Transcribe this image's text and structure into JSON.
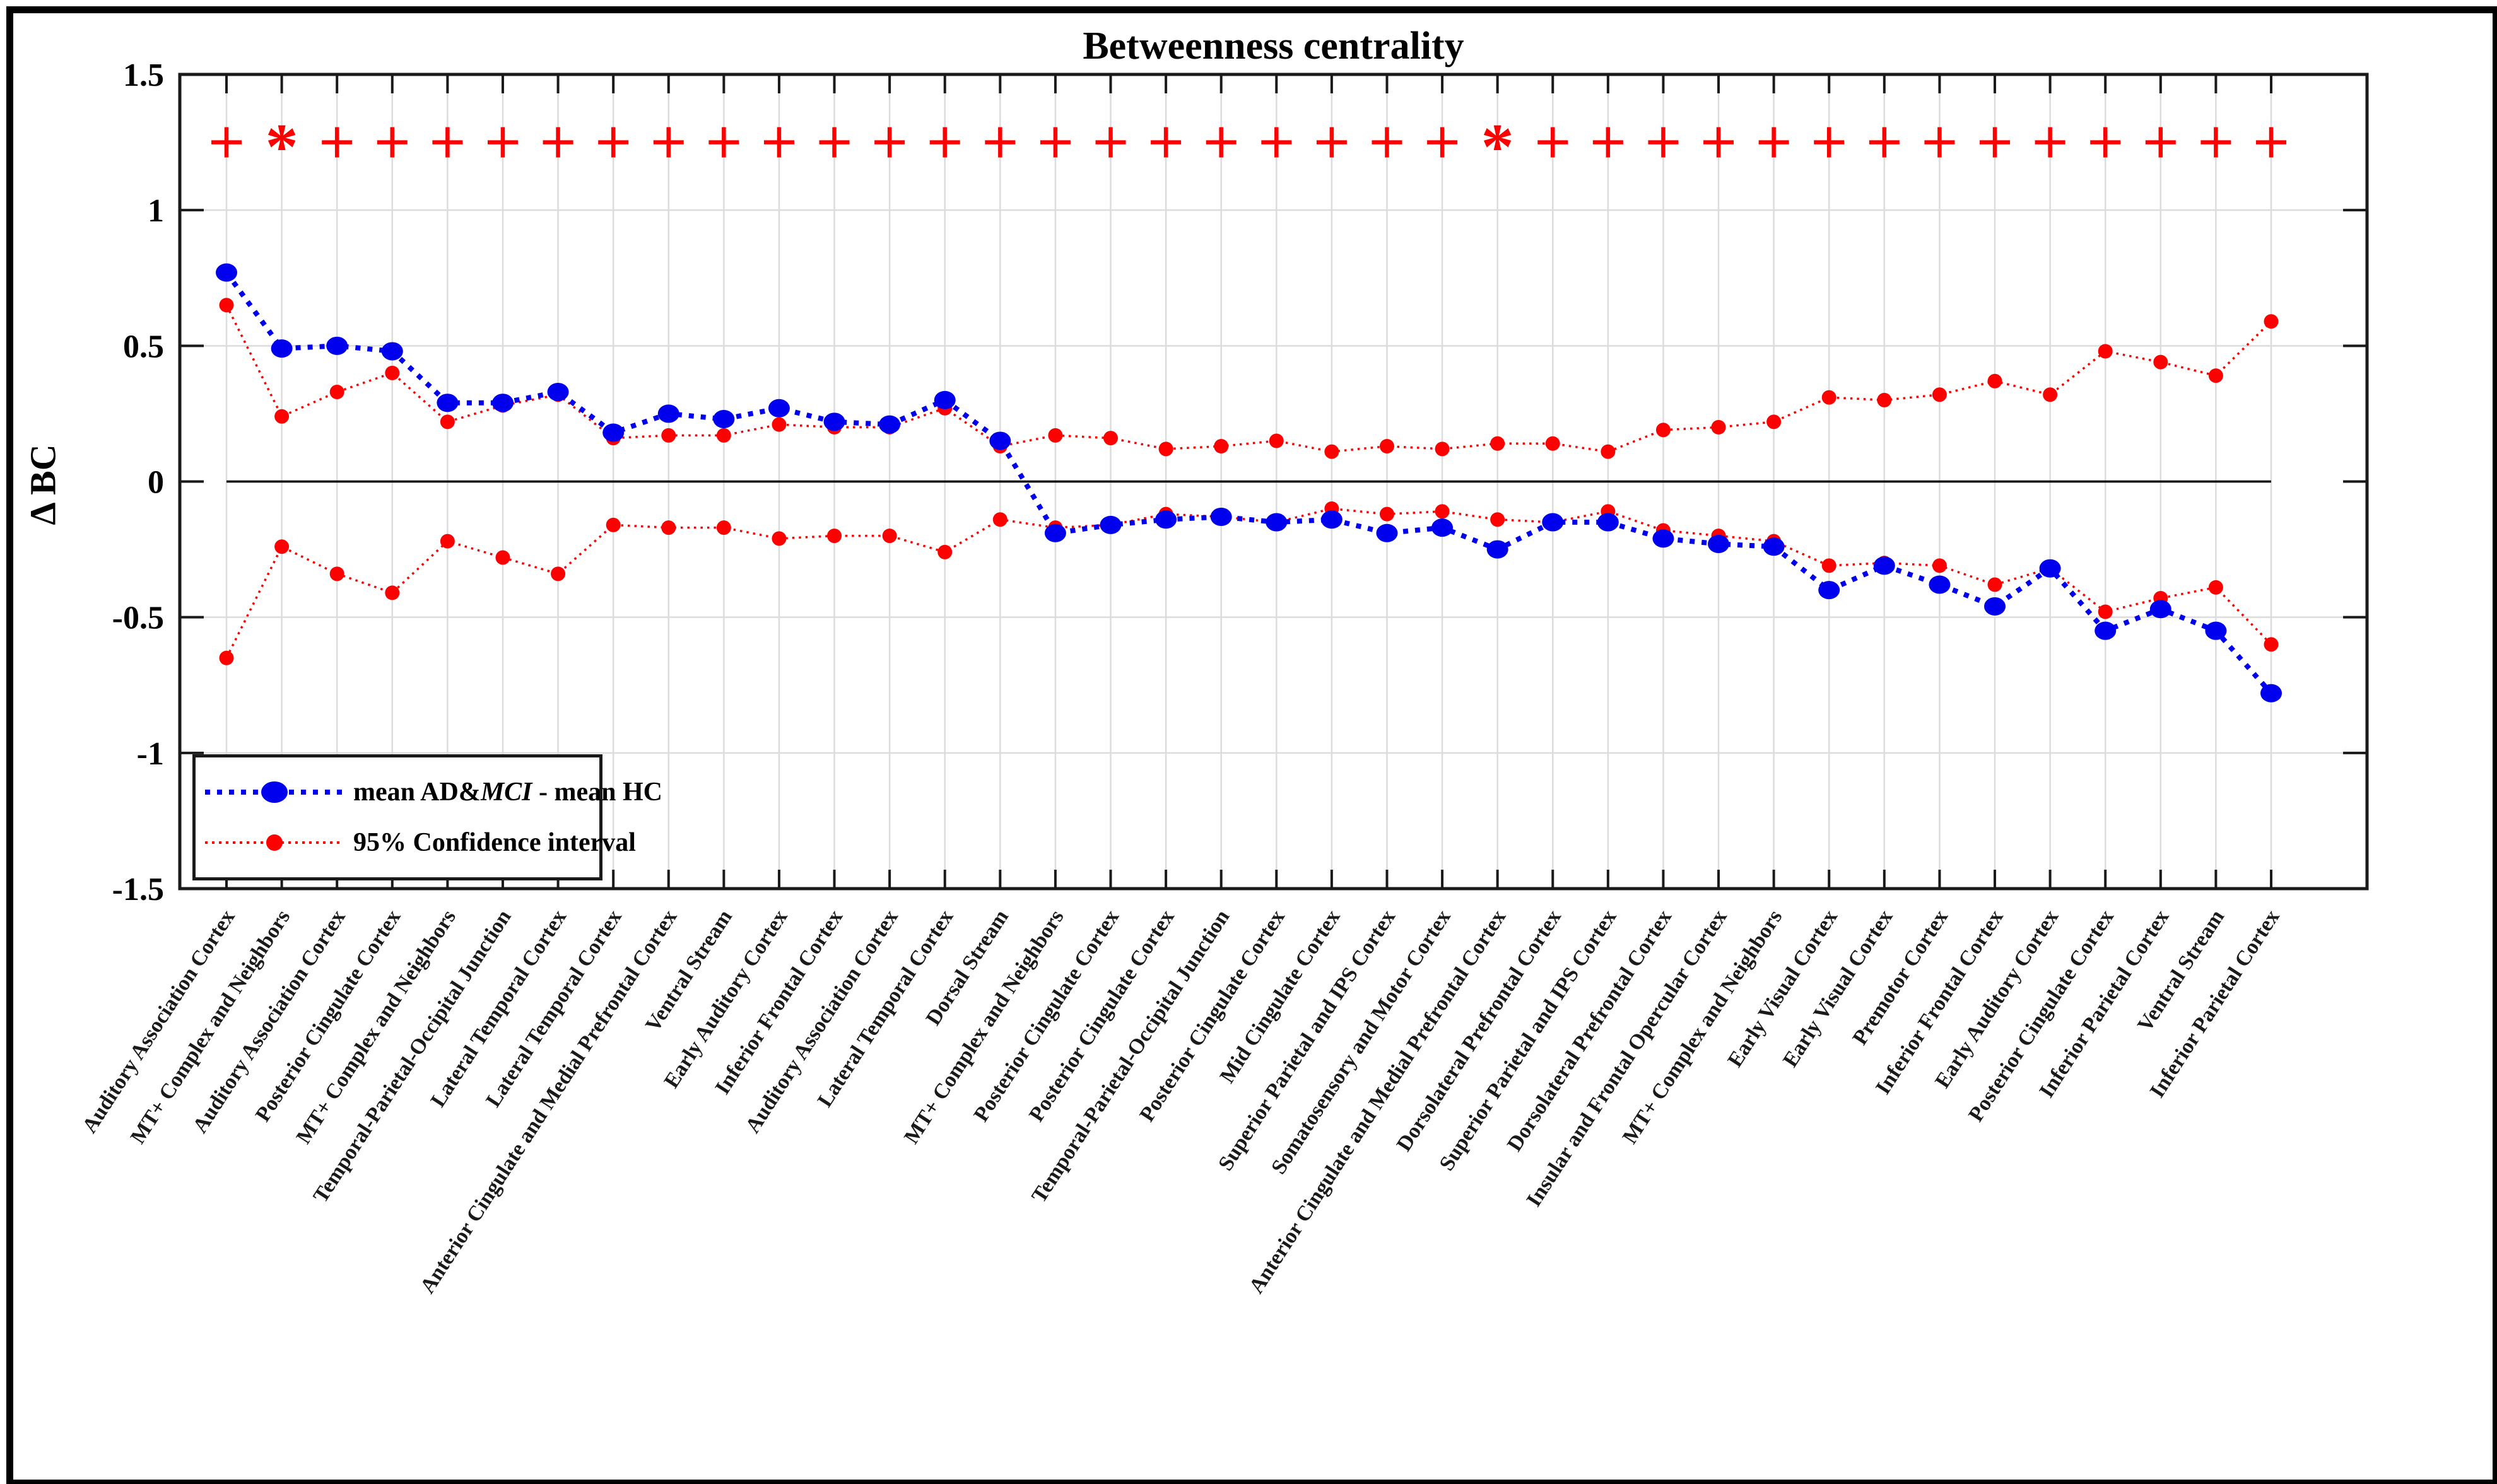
{
  "figure": {
    "title": "Betweenness centrality",
    "ylabel": "Δ BC",
    "background_color": "#ffffff",
    "border_color": "#000000"
  },
  "legend": {
    "series1_prefix": "mean AD&",
    "series1_italic": "MCI",
    "series1_suffix": " - mean HC",
    "series2_label": "95% Confidence interval"
  },
  "chart_data": {
    "type": "line",
    "title": "Betweenness centrality",
    "xlabel": "",
    "ylabel": "Δ BC",
    "ylim": [
      -1.5,
      1.5
    ],
    "ytick_values": [
      1.5,
      1,
      0.5,
      0,
      -0.5,
      -1,
      -1.5
    ],
    "ytick_labels": [
      "1.5",
      "1",
      "0.5",
      "0",
      "-0.5",
      "-1",
      "-1.5"
    ],
    "grid": true,
    "legend_position": "lower-left",
    "zero_line": 0,
    "significance_row_y": 1.25,
    "significance_markers": [
      "+",
      "*",
      "+",
      "+",
      "+",
      "+",
      "+",
      "+",
      "+",
      "+",
      "+",
      "+",
      "+",
      "+",
      "+",
      "+",
      "+",
      "+",
      "+",
      "+",
      "+",
      "+",
      "+",
      "*",
      "+",
      "+",
      "+",
      "+",
      "+",
      "+",
      "+",
      "+",
      "+",
      "+",
      "+",
      "+",
      "+",
      "+"
    ],
    "categories": [
      "Auditory Association Cortex",
      "MT+ Complex and Neighbors",
      "Auditory Association Cortex",
      "Posterior Cingulate Cortex",
      "MT+ Complex and Neighbors",
      "Temporal-Parietal-Occipital Junction",
      "Lateral Temporal Cortex",
      "Lateral Temporal Cortex",
      "Anterior Cingulate and Medial Prefrontal Cortex",
      "Ventral Stream",
      "Early Auditory Cortex",
      "Inferior Frontal Cortex",
      "Auditory Association Cortex",
      "Lateral Temporal Cortex",
      "Dorsal Stream",
      "MT+ Complex and Neighbors",
      "Posterior Cingulate Cortex",
      "Posterior Cingulate Cortex",
      "Temporal-Parietal-Occipital Junction",
      "Posterior Cingulate Cortex",
      "Mid Cingulate Cortex",
      "Superior Parietal and IPS Cortex",
      "Somatosensory and Motor Cortex",
      "Anterior Cingulate and Medial Prefrontal Cortex",
      "Dorsolateral Prefrontal Cortex",
      "Superior Parietal and IPS Cortex",
      "Dorsolateral Prefrontal Cortex",
      "Insular and Frontal Opercular Cortex",
      "MT+ Complex and Neighbors",
      "Early Visual Cortex",
      "Early Visual Cortex",
      "Premotor Cortex",
      "Inferior Frontal Cortex",
      "Early Auditory Cortex",
      "Posterior Cingulate Cortex",
      "Inferior Parietal Cortex",
      "Ventral Stream",
      "Inferior Parietal Cortex"
    ],
    "series": [
      {
        "name": "mean AD&MCI - mean HC",
        "color": "#0000ee",
        "line_style": "dotted-bold",
        "values": [
          0.77,
          0.49,
          0.5,
          0.48,
          0.29,
          0.29,
          0.33,
          0.18,
          0.25,
          0.23,
          0.27,
          0.22,
          0.21,
          0.3,
          0.15,
          -0.19,
          -0.16,
          -0.14,
          -0.13,
          -0.15,
          -0.14,
          -0.19,
          -0.17,
          -0.25,
          -0.15,
          -0.15,
          -0.21,
          -0.23,
          -0.24,
          -0.4,
          -0.31,
          -0.38,
          -0.46,
          -0.32,
          -0.55,
          -0.47,
          -0.55,
          -0.78
        ]
      },
      {
        "name": "95% Confidence interval (upper)",
        "color": "#ff0000",
        "line_style": "dotted",
        "values": [
          0.65,
          0.24,
          0.33,
          0.4,
          0.22,
          0.28,
          0.32,
          0.16,
          0.17,
          0.17,
          0.21,
          0.2,
          0.2,
          0.27,
          0.13,
          0.17,
          0.16,
          0.12,
          0.13,
          0.15,
          0.11,
          0.13,
          0.12,
          0.14,
          0.14,
          0.11,
          0.19,
          0.2,
          0.22,
          0.31,
          0.3,
          0.32,
          0.37,
          0.32,
          0.48,
          0.44,
          0.39,
          0.59
        ]
      },
      {
        "name": "95% Confidence interval (lower)",
        "color": "#ff0000",
        "line_style": "dotted",
        "values": [
          -0.65,
          -0.24,
          -0.34,
          -0.41,
          -0.22,
          -0.28,
          -0.34,
          -0.16,
          -0.17,
          -0.17,
          -0.21,
          -0.2,
          -0.2,
          -0.26,
          -0.14,
          -0.17,
          -0.16,
          -0.12,
          -0.13,
          -0.15,
          -0.1,
          -0.12,
          -0.11,
          -0.14,
          -0.15,
          -0.11,
          -0.18,
          -0.2,
          -0.22,
          -0.31,
          -0.3,
          -0.31,
          -0.38,
          -0.32,
          -0.48,
          -0.43,
          -0.39,
          -0.6
        ]
      }
    ],
    "colors": {
      "blue_series": "#0000ee",
      "red_series": "#ff0000",
      "significance_marker": "#ff0000",
      "grid": "#dcdcdc",
      "axis": "#1a1a1a",
      "zero_line": "#000000"
    }
  }
}
